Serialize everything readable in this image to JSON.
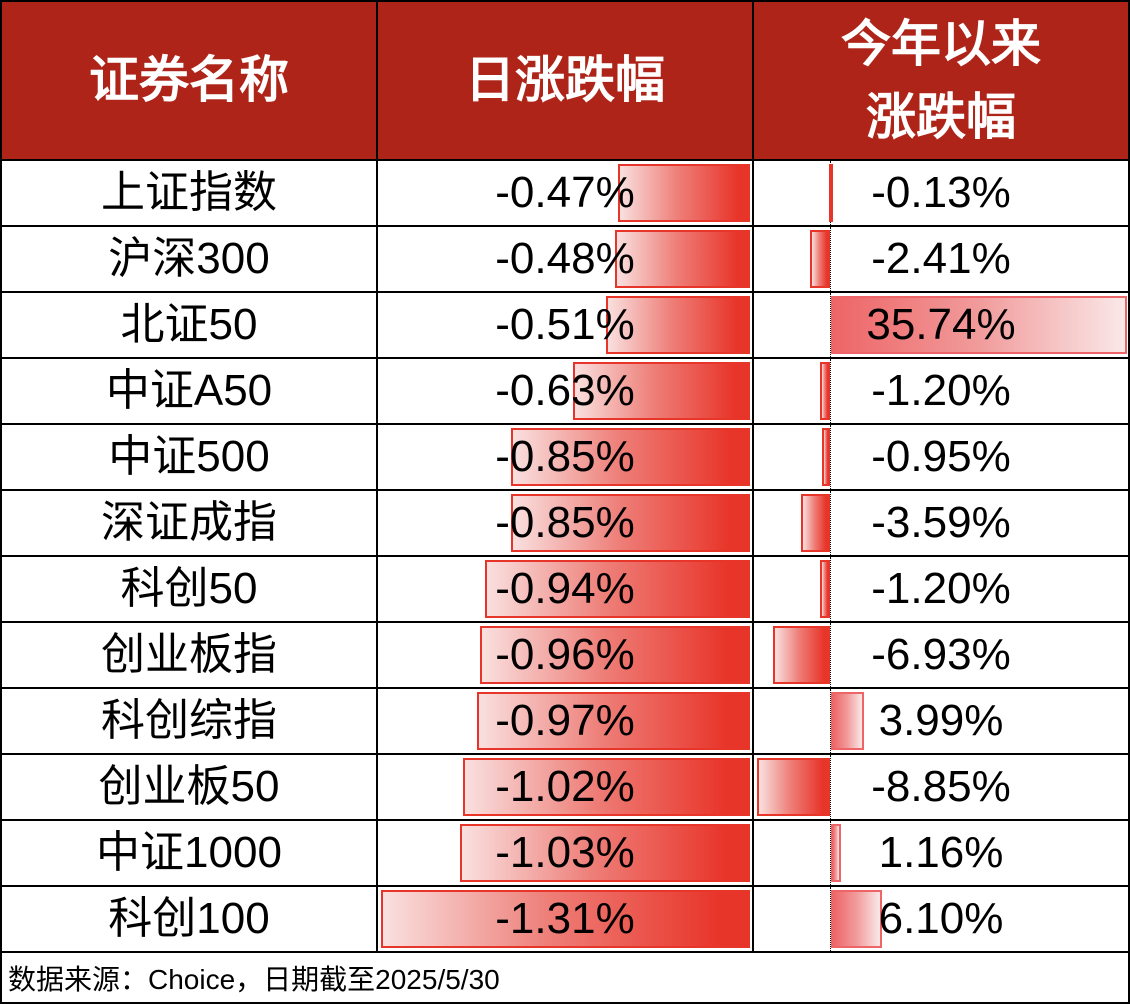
{
  "header": {
    "col1": "证券名称",
    "col2": "日涨跌幅",
    "col3_line1": "今年以来",
    "col3_line2": "涨跌幅"
  },
  "table": {
    "rows": [
      {
        "name": "上证指数",
        "daily_change": "-0.47%",
        "ytd_change": "-0.13%"
      },
      {
        "name": "沪深300",
        "daily_change": "-0.48%",
        "ytd_change": "-2.41%"
      },
      {
        "name": "北证50",
        "daily_change": "-0.51%",
        "ytd_change": "35.74%"
      },
      {
        "name": "中证A50",
        "daily_change": "-0.63%",
        "ytd_change": "-1.20%"
      },
      {
        "name": "中证500",
        "daily_change": "-0.85%",
        "ytd_change": "-0.95%"
      },
      {
        "name": "深证成指",
        "daily_change": "-0.85%",
        "ytd_change": "-3.59%"
      },
      {
        "name": "科创50",
        "daily_change": "-0.94%",
        "ytd_change": "-1.20%"
      },
      {
        "name": "创业板指",
        "daily_change": "-0.96%",
        "ytd_change": "-6.93%"
      },
      {
        "name": "科创综指",
        "daily_change": "-0.97%",
        "ytd_change": "3.99%"
      },
      {
        "name": "创业板50",
        "daily_change": "-1.02%",
        "ytd_change": "-8.85%"
      },
      {
        "name": "中证1000",
        "daily_change": "-1.03%",
        "ytd_change": "1.16%"
      },
      {
        "name": "科创100",
        "daily_change": "-1.31%",
        "ytd_change": "6.10%"
      }
    ]
  },
  "footer": {
    "source": "数据来源：Choice，日期截至2025/5/30"
  },
  "colors": {
    "header_bg": "#AE2418",
    "header_text": "#FFFFFF",
    "grid_border": "#000000",
    "negative_bar": "#E8352A",
    "positive_bar": "#EE6567"
  },
  "chart_data": {
    "type": "table",
    "title": "",
    "columns": [
      "证券名称",
      "日涨跌幅",
      "今年以来涨跌幅"
    ],
    "categories": [
      "上证指数",
      "沪深300",
      "北证50",
      "中证A50",
      "中证500",
      "深证成指",
      "科创50",
      "创业板指",
      "科创综指",
      "创业板50",
      "中证1000",
      "科创100"
    ],
    "series": [
      {
        "name": "日涨跌幅",
        "unit": "%",
        "values": [
          -0.47,
          -0.48,
          -0.51,
          -0.63,
          -0.85,
          -0.85,
          -0.94,
          -0.96,
          -0.97,
          -1.02,
          -1.03,
          -1.31
        ]
      },
      {
        "name": "今年以来涨跌幅",
        "unit": "%",
        "values": [
          -0.13,
          -2.41,
          35.74,
          -1.2,
          -0.95,
          -3.59,
          -1.2,
          -6.93,
          3.99,
          -8.85,
          1.16,
          6.1
        ]
      }
    ],
    "annotations": [
      "数据来源：Choice，日期截至2025/5/30"
    ],
    "layout": {
      "data_bars": true,
      "gradient_bars": true,
      "axis_line_in_ytd_column": "dotted",
      "grid": true,
      "legend": "none"
    }
  }
}
